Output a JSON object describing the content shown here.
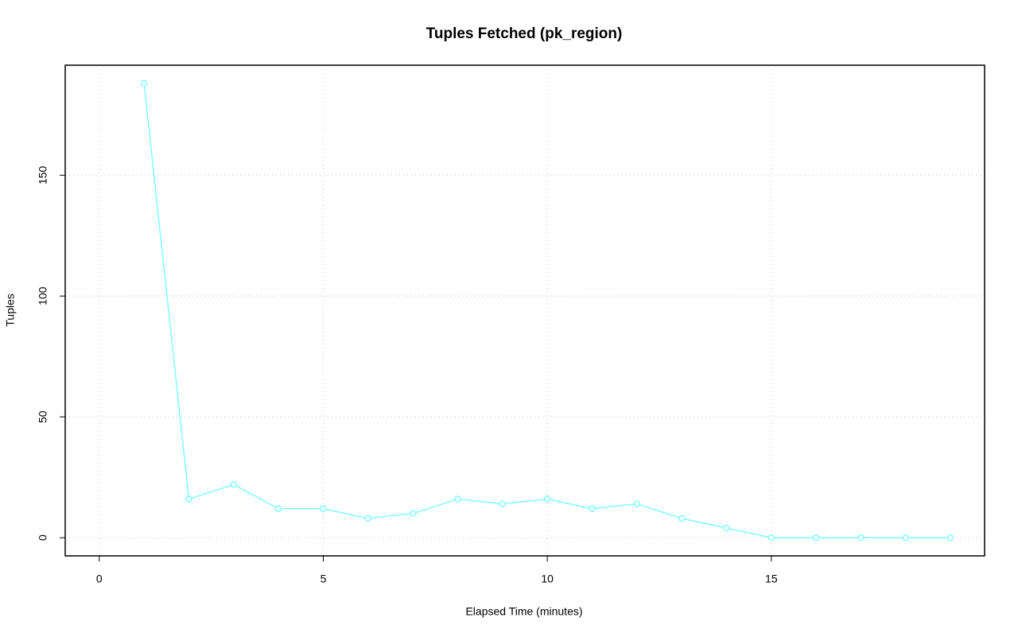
{
  "chart_data": {
    "type": "line",
    "title": "Tuples Fetched (pk_region)",
    "xlabel": "Elapsed Time (minutes)",
    "ylabel": "Tuples",
    "x": [
      1,
      2,
      3,
      4,
      5,
      6,
      7,
      8,
      9,
      10,
      11,
      12,
      13,
      14,
      15,
      16,
      17,
      18,
      19
    ],
    "series": [
      {
        "name": "pk_region",
        "color": "#7fffff",
        "values": [
          188,
          16,
          22,
          12,
          12,
          8,
          10,
          16,
          14,
          16,
          12,
          14,
          8,
          4,
          0,
          0,
          0,
          0,
          0
        ]
      }
    ],
    "xlim": [
      -0.76,
      19.76
    ],
    "xticks": [
      0,
      5,
      10,
      15
    ],
    "ylim": [
      -7.52,
      195.52
    ],
    "yticks": [
      0,
      50,
      100,
      150
    ],
    "grid": true
  }
}
